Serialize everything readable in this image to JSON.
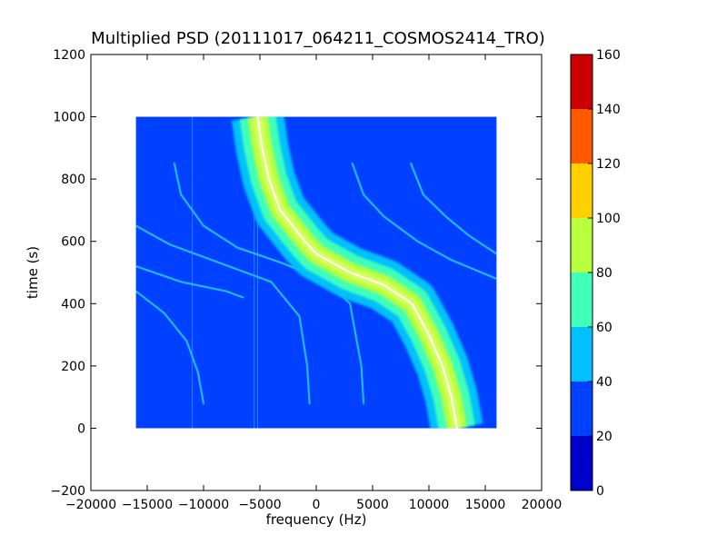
{
  "chart_data": {
    "type": "heatmap",
    "title": "Multiplied PSD (20111017_064211_COSMOS2414_TRO)",
    "xlabel": "frequency (Hz)",
    "ylabel": "time (s)",
    "xlim": [
      -20000,
      20000
    ],
    "ylim": [
      -200,
      1200
    ],
    "x_ticks": [
      {
        "value": -20000,
        "label": "−20000"
      },
      {
        "value": -15000,
        "label": "−15000"
      },
      {
        "value": -10000,
        "label": "−10000"
      },
      {
        "value": -5000,
        "label": "−5000"
      },
      {
        "value": 0,
        "label": "0"
      },
      {
        "value": 5000,
        "label": "5000"
      },
      {
        "value": 10000,
        "label": "10000"
      },
      {
        "value": 15000,
        "label": "15000"
      },
      {
        "value": 20000,
        "label": "20000"
      }
    ],
    "y_ticks": [
      {
        "value": -200,
        "label": "−200"
      },
      {
        "value": 0,
        "label": "0"
      },
      {
        "value": 200,
        "label": "200"
      },
      {
        "value": 400,
        "label": "400"
      },
      {
        "value": 600,
        "label": "600"
      },
      {
        "value": 800,
        "label": "800"
      },
      {
        "value": 1000,
        "label": "1000"
      },
      {
        "value": 1200,
        "label": "1200"
      }
    ],
    "data_extent": {
      "x": [
        -16000,
        16000
      ],
      "y": [
        0,
        1000
      ]
    },
    "background_level": 25,
    "colorbar": {
      "range": [
        0,
        160
      ],
      "ticks": [
        "0",
        "20",
        "40",
        "60",
        "80",
        "100",
        "120",
        "140",
        "160"
      ],
      "levels": [
        {
          "from": 0,
          "to": 20,
          "color": "#0000cc"
        },
        {
          "from": 20,
          "to": 40,
          "color": "#0040ff"
        },
        {
          "from": 40,
          "to": 60,
          "color": "#00c0ff"
        },
        {
          "from": 60,
          "to": 80,
          "color": "#40ffb8"
        },
        {
          "from": 80,
          "to": 100,
          "color": "#b8ff40"
        },
        {
          "from": 100,
          "to": 120,
          "color": "#ffd000"
        },
        {
          "from": 120,
          "to": 140,
          "color": "#ff5a00"
        },
        {
          "from": 140,
          "to": 160,
          "color": "#cc0000"
        }
      ]
    },
    "main_doppler_curve": [
      [
        -5200,
        1000
      ],
      [
        -4800,
        900
      ],
      [
        -4200,
        800
      ],
      [
        -3200,
        700
      ],
      [
        -1000,
        600
      ],
      [
        0,
        560
      ],
      [
        3000,
        500
      ],
      [
        6000,
        460
      ],
      [
        8500,
        400
      ],
      [
        10000,
        300
      ],
      [
        11200,
        200
      ],
      [
        12000,
        100
      ],
      [
        12500,
        0
      ]
    ],
    "faint_curves": [
      [
        [
          -12600,
          850
        ],
        [
          -12000,
          750
        ],
        [
          -10000,
          650
        ],
        [
          -7000,
          580
        ],
        [
          -3000,
          530
        ],
        [
          1000,
          470
        ],
        [
          3000,
          400
        ],
        [
          4000,
          200
        ],
        [
          4200,
          80
        ]
      ],
      [
        [
          3200,
          850
        ],
        [
          4200,
          750
        ],
        [
          6000,
          680
        ],
        [
          9000,
          600
        ],
        [
          12000,
          540
        ],
        [
          16000,
          480
        ]
      ],
      [
        [
          8400,
          850
        ],
        [
          9500,
          750
        ],
        [
          11500,
          680
        ],
        [
          13500,
          620
        ],
        [
          16000,
          560
        ]
      ],
      [
        [
          -16000,
          650
        ],
        [
          -13000,
          590
        ],
        [
          -10000,
          550
        ],
        [
          -7000,
          510
        ],
        [
          -4000,
          470
        ],
        [
          -1500,
          360
        ],
        [
          -800,
          200
        ],
        [
          -600,
          80
        ]
      ],
      [
        [
          -16000,
          440
        ],
        [
          -13500,
          370
        ],
        [
          -11500,
          280
        ],
        [
          -10500,
          180
        ],
        [
          -10000,
          80
        ]
      ],
      [
        [
          -16000,
          520
        ],
        [
          -12000,
          470
        ],
        [
          -8000,
          440
        ],
        [
          -6500,
          420
        ]
      ]
    ],
    "vertical_lines": [
      -11000,
      -5500,
      -5200
    ]
  }
}
